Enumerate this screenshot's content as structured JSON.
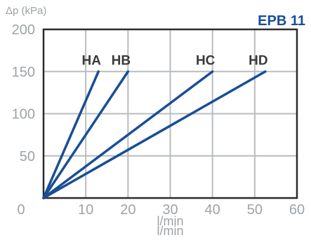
{
  "page": {
    "title": "EPB 11",
    "x_unit": "l/min",
    "y_axis_label": "Δp (kPa)"
  },
  "colors": {
    "line": "#1a4e95",
    "grid": "#b8bcc0",
    "frame": "#2b2b2b",
    "tick_text": "#9ea3a7",
    "series_label": "#3a3a3a",
    "title": "#1a4e95"
  },
  "chart_data": {
    "type": "line",
    "title": "EPB 11",
    "xlabel": "l/min",
    "ylabel": "Δp (kPa)",
    "xlim": [
      0,
      60
    ],
    "ylim": [
      0,
      200
    ],
    "x_ticks": [
      0,
      10,
      20,
      30,
      40,
      50,
      60
    ],
    "y_ticks": [
      0,
      50,
      100,
      150,
      200
    ],
    "grid": true,
    "series": [
      {
        "name": "HA",
        "x": [
          0,
          13
        ],
        "y": [
          0,
          150
        ]
      },
      {
        "name": "HB",
        "x": [
          0,
          20
        ],
        "y": [
          0,
          150
        ]
      },
      {
        "name": "HC",
        "x": [
          0,
          40
        ],
        "y": [
          0,
          150
        ]
      },
      {
        "name": "HD",
        "x": [
          0,
          52.5
        ],
        "y": [
          0,
          150
        ]
      }
    ]
  }
}
